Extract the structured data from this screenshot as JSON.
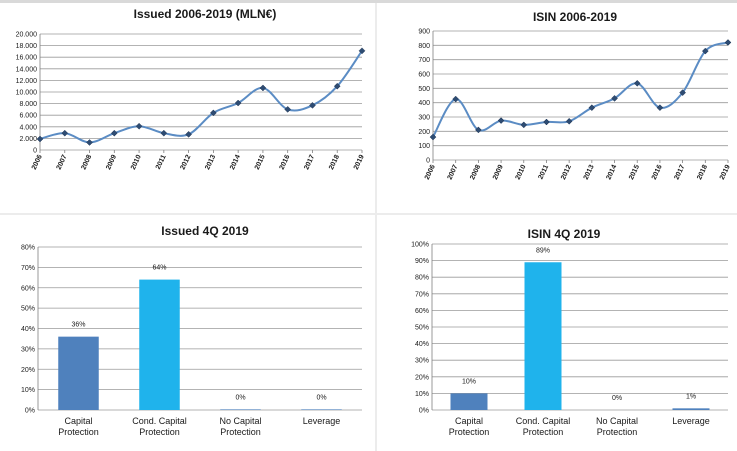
{
  "chart_data": [
    {
      "type": "line",
      "title": "Issued 2006-2019 (MLN€)",
      "x": [
        "2006",
        "2007",
        "2008",
        "2009",
        "2010",
        "2011",
        "2012",
        "2013",
        "2014",
        "2015",
        "2016",
        "2017",
        "2018",
        "2019"
      ],
      "values": [
        1900,
        2900,
        1300,
        2900,
        4100,
        2900,
        2700,
        6400,
        8100,
        10700,
        7000,
        7700,
        11000,
        17100
      ],
      "ylim": [
        0,
        20000
      ],
      "yticks": [
        0,
        2000,
        4000,
        6000,
        8000,
        10000,
        12000,
        14000,
        16000,
        18000,
        20000
      ],
      "ytick_labels": [
        "0",
        "2.000",
        "4.000",
        "6.000",
        "8.000",
        "10.000",
        "12.000",
        "14.000",
        "16.000",
        "18.000",
        "20.000"
      ],
      "grid": true,
      "line_color": "#5b8cc4",
      "marker_color": "#2e4c73"
    },
    {
      "type": "line",
      "title": "ISIN 2006-2019",
      "x": [
        "2006",
        "2007",
        "2008",
        "2009",
        "2010",
        "2011",
        "2012",
        "2013",
        "2014",
        "2015",
        "2016",
        "2017",
        "2018",
        "2019"
      ],
      "values": [
        160,
        425,
        210,
        275,
        245,
        265,
        270,
        365,
        430,
        535,
        365,
        470,
        760,
        820
      ],
      "ylim": [
        0,
        900
      ],
      "yticks": [
        0,
        100,
        200,
        300,
        400,
        500,
        600,
        700,
        800,
        900
      ],
      "ytick_labels": [
        "0",
        "100",
        "200",
        "300",
        "400",
        "500",
        "600",
        "700",
        "800",
        "900"
      ],
      "grid": true,
      "line_color": "#5b8cc4",
      "marker_color": "#2e4c73"
    },
    {
      "type": "bar",
      "title": "Issued 4Q 2019",
      "categories": [
        [
          "Capital",
          "Protection"
        ],
        [
          "Cond. Capital",
          "Protection"
        ],
        [
          "No Capital",
          "Protection"
        ],
        [
          "Leverage"
        ]
      ],
      "values": [
        36,
        64,
        0.3,
        0.3
      ],
      "value_labels": [
        "36%",
        "64%",
        "0%",
        "0%"
      ],
      "colors": [
        "#4f81bd",
        "#1fb3ec",
        "#4f81bd",
        "#4f81bd"
      ],
      "ylim": [
        0,
        80
      ],
      "yticks": [
        0,
        10,
        20,
        30,
        40,
        50,
        60,
        70,
        80
      ],
      "ytick_labels": [
        "0%",
        "10%",
        "20%",
        "30%",
        "40%",
        "50%",
        "60%",
        "70%",
        "80%"
      ],
      "grid": true
    },
    {
      "type": "bar",
      "title": "ISIN  4Q  2019",
      "categories": [
        [
          "Capital",
          "Protection"
        ],
        [
          "Cond. Capital",
          "Protection"
        ],
        [
          "No Capital",
          "Protection"
        ],
        [
          "Leverage"
        ]
      ],
      "values": [
        10,
        89,
        0,
        1
      ],
      "value_labels": [
        "10%",
        "89%",
        "0%",
        "1%"
      ],
      "colors": [
        "#4f81bd",
        "#1fb3ec",
        "#4f81bd",
        "#4f81bd"
      ],
      "ylim": [
        0,
        100
      ],
      "yticks": [
        0,
        10,
        20,
        30,
        40,
        50,
        60,
        70,
        80,
        90,
        100
      ],
      "ytick_labels": [
        "0%",
        "10%",
        "20%",
        "30%",
        "40%",
        "50%",
        "60%",
        "70%",
        "80%",
        "90%",
        "100%"
      ],
      "grid": true
    }
  ]
}
